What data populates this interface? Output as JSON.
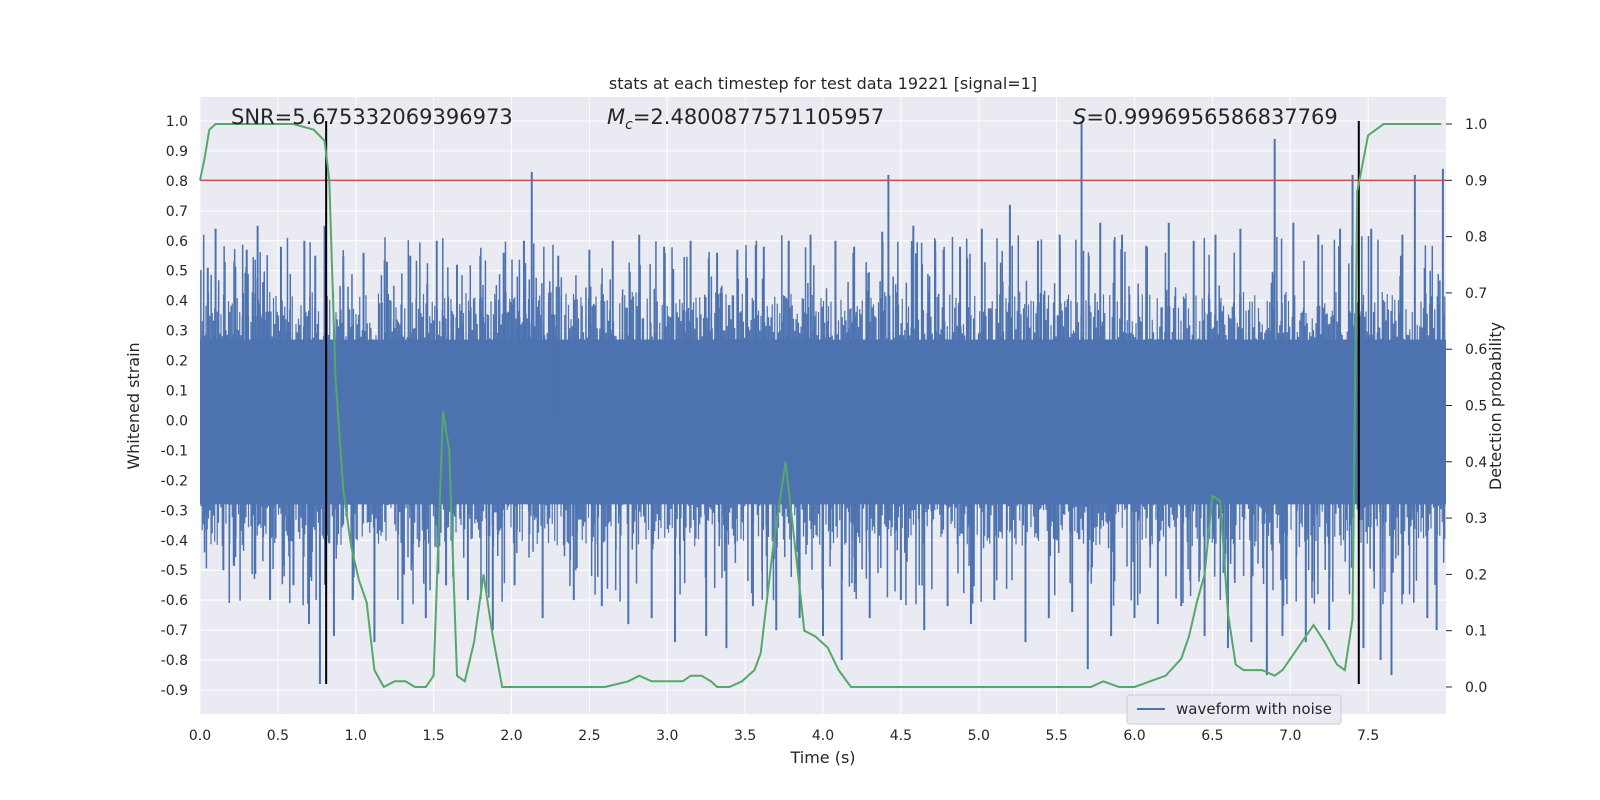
{
  "chart_data": {
    "type": "line",
    "title": "stats at each timestep for test data 19221 [signal=1]",
    "xlabel": "Time (s)",
    "ylabel": "Whitened strain",
    "y2label": "Detection probability",
    "xlim": [
      0.0,
      8.0
    ],
    "ylim": [
      -0.98,
      1.08
    ],
    "y2lim": [
      -0.048,
      1.048
    ],
    "xticks": [
      "0.0",
      "0.5",
      "1.0",
      "1.5",
      "2.0",
      "2.5",
      "3.0",
      "3.5",
      "4.0",
      "4.5",
      "5.0",
      "5.5",
      "6.0",
      "6.5",
      "7.0",
      "7.5"
    ],
    "yticks": [
      "1.0",
      "0.9",
      "0.8",
      "0.7",
      "0.6",
      "0.5",
      "0.4",
      "0.3",
      "0.2",
      "0.1",
      "0.0",
      "-0.1",
      "-0.2",
      "-0.3",
      "-0.4",
      "-0.5",
      "-0.6",
      "-0.7",
      "-0.8",
      "-0.9"
    ],
    "y2ticks": [
      "1.0",
      "0.9",
      "0.8",
      "0.7",
      "0.6",
      "0.5",
      "0.4",
      "0.3",
      "0.2",
      "0.1",
      "0.0"
    ],
    "grid": true,
    "annotations": {
      "snr": "SNR=5.675332069396973",
      "mc_symbol": "M",
      "mc_sub": "c",
      "mc_value": "=2.4800877571105957",
      "s_symbol": "S",
      "s_value": "=0.9996956586837769"
    },
    "legend": {
      "label": "waveform with noise",
      "position": "lower right"
    },
    "threshold": {
      "y2": 0.9,
      "color": "#c44e52"
    },
    "vlines": {
      "x": [
        0.81,
        7.44
      ],
      "y_range": [
        -0.88,
        1.0
      ],
      "color": "#000000"
    },
    "series": [
      {
        "name": "waveform with noise",
        "axis": "left",
        "color": "#4c72b0",
        "envelope_pos": 0.43,
        "envelope_neg": -0.42,
        "spikes": [
          {
            "x": 0.05,
            "y": 0.51
          },
          {
            "x": 0.1,
            "y": 0.64
          },
          {
            "x": 0.15,
            "y": -0.5
          },
          {
            "x": 0.22,
            "y": 0.53
          },
          {
            "x": 0.3,
            "y": 0.57
          },
          {
            "x": 0.37,
            "y": 0.65
          },
          {
            "x": 0.45,
            "y": -0.6
          },
          {
            "x": 0.52,
            "y": 0.58
          },
          {
            "x": 0.6,
            "y": -0.55
          },
          {
            "x": 0.67,
            "y": 0.6
          },
          {
            "x": 0.7,
            "y": -0.68
          },
          {
            "x": 0.74,
            "y": 0.55
          },
          {
            "x": 0.77,
            "y": -0.88
          },
          {
            "x": 0.8,
            "y": 0.65
          },
          {
            "x": 0.86,
            "y": -0.72
          },
          {
            "x": 0.92,
            "y": 0.55
          },
          {
            "x": 0.98,
            "y": -0.6
          },
          {
            "x": 1.05,
            "y": 0.56
          },
          {
            "x": 1.12,
            "y": -0.74
          },
          {
            "x": 1.2,
            "y": 0.53
          },
          {
            "x": 1.3,
            "y": -0.68
          },
          {
            "x": 1.35,
            "y": 0.55
          },
          {
            "x": 1.45,
            "y": -0.66
          },
          {
            "x": 1.52,
            "y": 0.6
          },
          {
            "x": 1.58,
            "y": -0.55
          },
          {
            "x": 1.65,
            "y": 0.52
          },
          {
            "x": 1.72,
            "y": -0.6
          },
          {
            "x": 1.8,
            "y": 0.55
          },
          {
            "x": 1.88,
            "y": -0.7
          },
          {
            "x": 1.95,
            "y": 0.56
          },
          {
            "x": 2.02,
            "y": -0.55
          },
          {
            "x": 2.08,
            "y": 0.6
          },
          {
            "x": 2.13,
            "y": 0.83
          },
          {
            "x": 2.2,
            "y": -0.66
          },
          {
            "x": 2.3,
            "y": 0.55
          },
          {
            "x": 2.4,
            "y": -0.6
          },
          {
            "x": 2.5,
            "y": 0.57
          },
          {
            "x": 2.58,
            "y": -0.62
          },
          {
            "x": 2.65,
            "y": 0.6
          },
          {
            "x": 2.75,
            "y": -0.68
          },
          {
            "x": 2.82,
            "y": 0.62
          },
          {
            "x": 2.9,
            "y": -0.66
          },
          {
            "x": 2.98,
            "y": 0.58
          },
          {
            "x": 3.05,
            "y": -0.74
          },
          {
            "x": 3.15,
            "y": 0.6
          },
          {
            "x": 3.25,
            "y": -0.72
          },
          {
            "x": 3.32,
            "y": 0.56
          },
          {
            "x": 3.38,
            "y": -0.76
          },
          {
            "x": 3.45,
            "y": 0.57
          },
          {
            "x": 3.55,
            "y": -0.62
          },
          {
            "x": 3.62,
            "y": 0.58
          },
          {
            "x": 3.7,
            "y": -0.7
          },
          {
            "x": 3.78,
            "y": 0.6
          },
          {
            "x": 3.85,
            "y": -0.66
          },
          {
            "x": 3.92,
            "y": 0.62
          },
          {
            "x": 4.0,
            "y": -0.72
          },
          {
            "x": 4.08,
            "y": 0.6
          },
          {
            "x": 4.12,
            "y": -0.8
          },
          {
            "x": 4.2,
            "y": 0.58
          },
          {
            "x": 4.3,
            "y": -0.66
          },
          {
            "x": 4.38,
            "y": 0.63
          },
          {
            "x": 4.42,
            "y": 0.82
          },
          {
            "x": 4.5,
            "y": -0.6
          },
          {
            "x": 4.58,
            "y": 0.65
          },
          {
            "x": 4.65,
            "y": -0.7
          },
          {
            "x": 4.72,
            "y": 0.6
          },
          {
            "x": 4.8,
            "y": -0.62
          },
          {
            "x": 4.88,
            "y": 0.58
          },
          {
            "x": 4.95,
            "y": -0.68
          },
          {
            "x": 5.02,
            "y": 0.64
          },
          {
            "x": 5.1,
            "y": -0.6
          },
          {
            "x": 5.2,
            "y": 0.72
          },
          {
            "x": 5.3,
            "y": -0.74
          },
          {
            "x": 5.38,
            "y": 0.6
          },
          {
            "x": 5.45,
            "y": -0.66
          },
          {
            "x": 5.52,
            "y": 0.62
          },
          {
            "x": 5.6,
            "y": -0.64
          },
          {
            "x": 5.66,
            "y": 1.0
          },
          {
            "x": 5.7,
            "y": -0.83
          },
          {
            "x": 5.78,
            "y": 0.66
          },
          {
            "x": 5.85,
            "y": -0.72
          },
          {
            "x": 5.92,
            "y": 0.62
          },
          {
            "x": 6.0,
            "y": -0.66
          },
          {
            "x": 6.08,
            "y": 0.58
          },
          {
            "x": 6.15,
            "y": -0.68
          },
          {
            "x": 6.22,
            "y": 0.66
          },
          {
            "x": 6.3,
            "y": -0.62
          },
          {
            "x": 6.38,
            "y": 0.6
          },
          {
            "x": 6.45,
            "y": -0.72
          },
          {
            "x": 6.52,
            "y": 0.62
          },
          {
            "x": 6.6,
            "y": -0.76
          },
          {
            "x": 6.68,
            "y": 0.64
          },
          {
            "x": 6.75,
            "y": -0.74
          },
          {
            "x": 6.85,
            "y": -0.85
          },
          {
            "x": 6.9,
            "y": 0.94
          },
          {
            "x": 6.95,
            "y": -0.72
          },
          {
            "x": 7.02,
            "y": 0.66
          },
          {
            "x": 7.1,
            "y": -0.74
          },
          {
            "x": 7.18,
            "y": 0.62
          },
          {
            "x": 7.25,
            "y": -0.7
          },
          {
            "x": 7.32,
            "y": 0.64
          },
          {
            "x": 7.4,
            "y": 0.82
          },
          {
            "x": 7.47,
            "y": -0.76
          },
          {
            "x": 7.52,
            "y": 0.64
          },
          {
            "x": 7.58,
            "y": -0.8
          },
          {
            "x": 7.65,
            "y": -0.85
          },
          {
            "x": 7.72,
            "y": 0.62
          },
          {
            "x": 7.8,
            "y": 0.82
          },
          {
            "x": 7.88,
            "y": -0.66
          },
          {
            "x": 7.94,
            "y": -0.7
          },
          {
            "x": 7.98,
            "y": 0.84
          }
        ]
      },
      {
        "name": "detection probability",
        "axis": "right",
        "color": "#55a868",
        "x": [
          0.0,
          0.03,
          0.06,
          0.1,
          0.2,
          0.4,
          0.6,
          0.73,
          0.8,
          0.83,
          0.87,
          0.92,
          0.97,
          1.02,
          1.07,
          1.12,
          1.18,
          1.25,
          1.32,
          1.38,
          1.45,
          1.5,
          1.56,
          1.6,
          1.65,
          1.7,
          1.76,
          1.82,
          1.88,
          1.94,
          2.0,
          2.1,
          2.3,
          2.6,
          2.75,
          2.82,
          2.9,
          2.95,
          3.02,
          3.1,
          3.15,
          3.22,
          3.28,
          3.32,
          3.4,
          3.48,
          3.56,
          3.6,
          3.68,
          3.76,
          3.82,
          3.88,
          3.95,
          4.03,
          4.1,
          4.18,
          4.25,
          4.35,
          4.6,
          4.8,
          5.0,
          5.5,
          5.72,
          5.8,
          5.9,
          6.0,
          6.1,
          6.2,
          6.3,
          6.35,
          6.4,
          6.45,
          6.5,
          6.55,
          6.6,
          6.65,
          6.7,
          6.75,
          6.82,
          6.9,
          6.95,
          7.0,
          7.05,
          7.1,
          7.15,
          7.22,
          7.3,
          7.35,
          7.4,
          7.43,
          7.5,
          7.55,
          7.6,
          7.7,
          7.8,
          7.97
        ],
        "y": [
          0.9,
          0.94,
          0.99,
          1.0,
          1.0,
          1.0,
          1.0,
          0.99,
          0.97,
          0.9,
          0.55,
          0.35,
          0.25,
          0.19,
          0.15,
          0.03,
          0.0,
          0.01,
          0.01,
          0.0,
          0.0,
          0.02,
          0.49,
          0.42,
          0.02,
          0.01,
          0.08,
          0.2,
          0.09,
          0.0,
          0.0,
          0.0,
          0.0,
          0.0,
          0.01,
          0.02,
          0.01,
          0.01,
          0.01,
          0.01,
          0.02,
          0.02,
          0.01,
          0.0,
          0.0,
          0.01,
          0.03,
          0.06,
          0.25,
          0.4,
          0.25,
          0.1,
          0.09,
          0.07,
          0.03,
          0.0,
          0.0,
          0.0,
          0.0,
          0.0,
          0.0,
          0.0,
          0.0,
          0.01,
          0.0,
          0.0,
          0.01,
          0.02,
          0.05,
          0.09,
          0.15,
          0.2,
          0.34,
          0.33,
          0.13,
          0.04,
          0.03,
          0.03,
          0.03,
          0.02,
          0.03,
          0.05,
          0.07,
          0.09,
          0.11,
          0.08,
          0.04,
          0.03,
          0.12,
          0.88,
          0.98,
          0.99,
          1.0,
          1.0,
          1.0,
          1.0
        ]
      }
    ]
  }
}
